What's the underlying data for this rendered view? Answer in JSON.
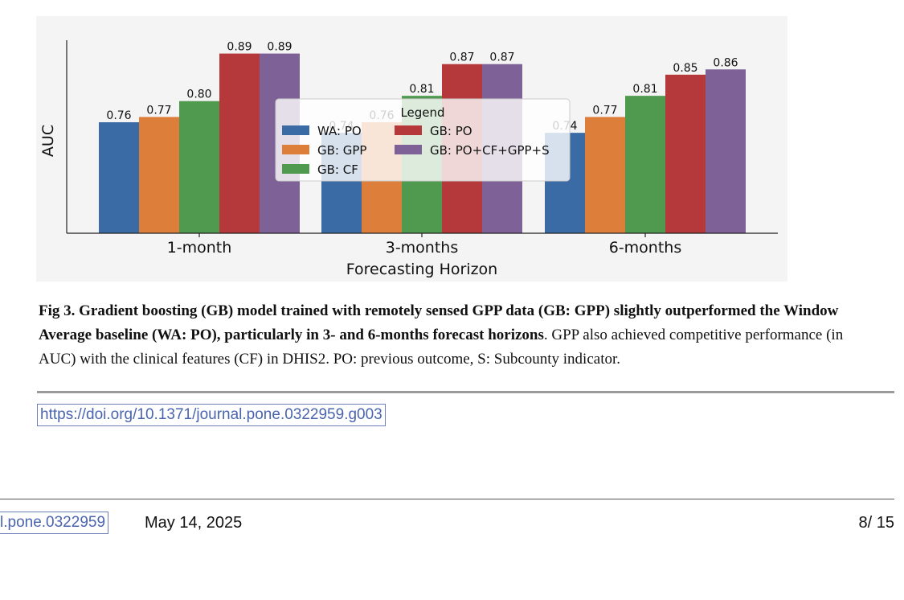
{
  "chart_data": {
    "type": "bar",
    "title": "",
    "xlabel": "Forecasting Horizon",
    "ylabel": "AUC",
    "categories": [
      "1-month",
      "3-months",
      "6-months"
    ],
    "ylim": [
      0.55,
      0.9
    ],
    "grid": false,
    "legend": {
      "title": "Legend",
      "placement": "center"
    },
    "series": [
      {
        "name": "WA: PO",
        "color": "#3b6ba5",
        "values": [
          0.76,
          0.74,
          0.74
        ],
        "labels": [
          "0.76",
          "0.74",
          "0.74"
        ]
      },
      {
        "name": "GB: GPP",
        "color": "#dd7e3b",
        "values": [
          0.77,
          0.76,
          0.77
        ],
        "labels": [
          "0.77",
          "0.76",
          "0.77"
        ]
      },
      {
        "name": "GB: CF",
        "color": "#4f9a4f",
        "values": [
          0.8,
          0.81,
          0.81
        ],
        "labels": [
          "0.80",
          "0.81",
          "0.81"
        ]
      },
      {
        "name": "GB: PO",
        "color": "#b5383a",
        "values": [
          0.89,
          0.87,
          0.85
        ],
        "labels": [
          "0.89",
          "0.87",
          "0.85"
        ]
      },
      {
        "name": "GB: PO+CF+GPP+S",
        "color": "#7e6196",
        "values": [
          0.89,
          0.87,
          0.86
        ],
        "labels": [
          "0.89",
          "0.87",
          "0.86"
        ]
      }
    ]
  },
  "caption": {
    "bold": "Fig 3. Gradient boosting (GB) model trained with remotely sensed GPP data (GB: GPP) slightly outperformed the Window Average baseline (WA: PO), particularly in 3- and 6-months forecast horizons",
    "rest": ". GPP also achieved competitive performance (in AUC) with the clinical features (CF) in DHIS2. PO: previous outcome, S: Subcounty indicator."
  },
  "doi_link": "https://doi.org/10.1371/journal.pone.0322959.g003",
  "footer": {
    "doi_fragment": "l.pone.0322959",
    "date": "May 14, 2025",
    "page": "8/ 15"
  }
}
